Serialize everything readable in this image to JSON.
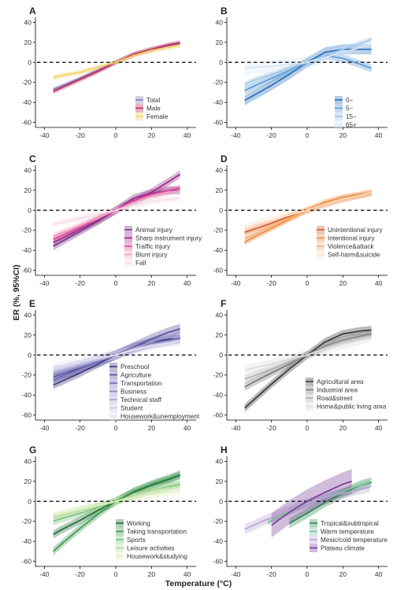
{
  "figure": {
    "ylabel": "ER (%, 95%CI)",
    "xlabel": "Temperature (°C)"
  },
  "chart_data": [
    {
      "panel": "A",
      "type": "line",
      "xlim": [
        -45,
        45
      ],
      "ylim": [
        -65,
        45
      ],
      "xticks": [
        -40,
        -20,
        0,
        20,
        40
      ],
      "yticks": [
        -60,
        -40,
        -20,
        0,
        20,
        40
      ],
      "legend_position": "bottom-right",
      "reference_line": 0,
      "series": [
        {
          "name": "Total",
          "color": "#8a78b8",
          "ci": 2,
          "x": [
            -35,
            -30,
            -20,
            -10,
            0,
            10,
            20,
            30,
            36
          ],
          "y": [
            -27,
            -23.5,
            -16,
            -8,
            0,
            8,
            13,
            17,
            19
          ]
        },
        {
          "name": "Male",
          "color": "#c0285a",
          "ci": 2.5,
          "x": [
            -35,
            -30,
            -20,
            -10,
            0,
            10,
            20,
            30,
            36
          ],
          "y": [
            -29,
            -25,
            -17,
            -9,
            0,
            8,
            13,
            17.5,
            19.5
          ]
        },
        {
          "name": "Female",
          "color": "#f2d26a",
          "ci": 2.5,
          "x": [
            -35,
            -30,
            -20,
            -10,
            0,
            10,
            20,
            30,
            36
          ],
          "y": [
            -15,
            -13,
            -10,
            -5,
            0,
            7,
            12,
            15,
            17
          ]
        }
      ]
    },
    {
      "panel": "B",
      "type": "line",
      "xlim": [
        -45,
        45
      ],
      "ylim": [
        -65,
        45
      ],
      "xticks": [
        -40,
        -20,
        0,
        20,
        40
      ],
      "yticks": [
        -60,
        -40,
        -20,
        0,
        20,
        40
      ],
      "legend_position": "bottom-right",
      "reference_line": 0,
      "series": [
        {
          "name": "0−",
          "color": "#2c6fb8",
          "ci": 5,
          "x": [
            -35,
            -30,
            -20,
            -10,
            0,
            10,
            20,
            30,
            36
          ],
          "y": [
            -38,
            -33,
            -23,
            -12,
            0,
            10,
            13,
            13,
            13
          ]
        },
        {
          "name": "5−",
          "color": "#5a9bd4",
          "ci": 4,
          "x": [
            -35,
            -30,
            -20,
            -10,
            0,
            10,
            20,
            30,
            36
          ],
          "y": [
            -28,
            -24,
            -16,
            -8,
            0,
            7,
            4,
            -2,
            -6
          ]
        },
        {
          "name": "15−",
          "color": "#9ec6e8",
          "ci": 3,
          "x": [
            -35,
            -30,
            -20,
            -10,
            0,
            10,
            20,
            30,
            36
          ],
          "y": [
            -22,
            -18,
            -12,
            -6,
            0,
            7,
            13,
            19,
            23
          ]
        },
        {
          "name": "65+",
          "color": "#d6e6f4",
          "ci": 6,
          "x": [
            -35,
            -30,
            -20,
            -10,
            0,
            10,
            20,
            30,
            36
          ],
          "y": [
            -6,
            -5,
            -4,
            -2,
            0,
            5,
            10,
            15,
            18
          ]
        }
      ]
    },
    {
      "panel": "C",
      "type": "line",
      "xlim": [
        -45,
        45
      ],
      "ylim": [
        -65,
        45
      ],
      "xticks": [
        -40,
        -20,
        0,
        20,
        40
      ],
      "yticks": [
        -60,
        -40,
        -20,
        0,
        20,
        40
      ],
      "legend_position": "bottom-right",
      "reference_line": 0,
      "series": [
        {
          "name": "Animal injury",
          "color": "#7c3a8e",
          "ci": 4,
          "x": [
            -35,
            -30,
            -20,
            -10,
            0,
            10,
            20,
            30,
            36
          ],
          "y": [
            -36,
            -31,
            -21,
            -11,
            0,
            12,
            17,
            20,
            20
          ]
        },
        {
          "name": "Sharp instrument injury",
          "color": "#9e2a86",
          "ci": 4,
          "x": [
            -35,
            -30,
            -20,
            -10,
            0,
            10,
            20,
            30,
            36
          ],
          "y": [
            -32,
            -28,
            -19,
            -10,
            0,
            9,
            18,
            29,
            36
          ]
        },
        {
          "name": "Traffic injury",
          "color": "#e0449a",
          "ci": 3,
          "x": [
            -35,
            -30,
            -20,
            -10,
            0,
            10,
            20,
            30,
            36
          ],
          "y": [
            -29,
            -25,
            -17,
            -8,
            0,
            10,
            16,
            20,
            22
          ]
        },
        {
          "name": "Blunt injury",
          "color": "#f2a0c4",
          "ci": 3,
          "x": [
            -35,
            -30,
            -20,
            -10,
            0,
            10,
            20,
            30,
            36
          ],
          "y": [
            -26,
            -22,
            -15,
            -8,
            0,
            8,
            14,
            18,
            20
          ]
        },
        {
          "name": "Fall",
          "color": "#f6dcea",
          "ci": 3,
          "x": [
            -35,
            -30,
            -20,
            -10,
            0,
            10,
            20,
            30,
            36
          ],
          "y": [
            -14,
            -12,
            -8,
            -4,
            0,
            5,
            9,
            11,
            12
          ]
        }
      ]
    },
    {
      "panel": "D",
      "type": "line",
      "xlim": [
        -45,
        45
      ],
      "ylim": [
        -65,
        45
      ],
      "xticks": [
        -40,
        -20,
        0,
        20,
        40
      ],
      "yticks": [
        -60,
        -40,
        -20,
        0,
        20,
        40
      ],
      "legend_position": "bottom-right",
      "reference_line": 0,
      "series": [
        {
          "name": "Unintentional injury",
          "color": "#d9582a",
          "ci": 3,
          "x": [
            -35,
            -30,
            -20,
            -10,
            0,
            10,
            20,
            30,
            36
          ],
          "y": [
            -22,
            -19,
            -13,
            -6,
            0,
            6,
            11,
            15,
            17
          ]
        },
        {
          "name": "Intentional injury",
          "color": "#ef8a3e",
          "ci": 3,
          "x": [
            -35,
            -30,
            -20,
            -10,
            0,
            10,
            20,
            30,
            36
          ],
          "y": [
            -32,
            -27,
            -18,
            -9,
            0,
            8,
            13,
            16,
            18
          ]
        },
        {
          "name": "Violence&attack",
          "color": "#f6b27a",
          "ci": 3,
          "x": [
            -35,
            -30,
            -20,
            -10,
            0,
            10,
            20,
            30,
            36
          ],
          "y": [
            -28,
            -24,
            -16,
            -8,
            0,
            7,
            12,
            15,
            17
          ]
        },
        {
          "name": "Self-harm&suicide",
          "color": "#fbe0c4",
          "ci": 4,
          "x": [
            -35,
            -30,
            -20,
            -10,
            0,
            10,
            20,
            30,
            36
          ],
          "y": [
            -18,
            -15,
            -10,
            -5,
            0,
            6,
            11,
            15,
            18
          ]
        }
      ]
    },
    {
      "panel": "E",
      "type": "line",
      "xlim": [
        -45,
        45
      ],
      "ylim": [
        -65,
        45
      ],
      "xticks": [
        -40,
        -20,
        0,
        20,
        40
      ],
      "yticks": [
        -60,
        -40,
        -20,
        0,
        20,
        40
      ],
      "legend_position": "bottom-center",
      "reference_line": 0,
      "series": [
        {
          "name": "Preschool",
          "color": "#3e3a78",
          "ci": 4,
          "x": [
            -35,
            -30,
            -20,
            -10,
            0,
            10,
            20,
            30,
            36
          ],
          "y": [
            -30,
            -26,
            -18,
            -9,
            0,
            8,
            13,
            16,
            16
          ]
        },
        {
          "name": "Agriculture",
          "color": "#5c4fa0",
          "ci": 5,
          "x": [
            -35,
            -30,
            -20,
            -10,
            0,
            10,
            20,
            30,
            36
          ],
          "y": [
            -22,
            -19,
            -13,
            -7,
            0,
            8,
            16,
            23,
            26
          ]
        },
        {
          "name": "Transportation",
          "color": "#6e68b4",
          "ci": 4,
          "x": [
            -35,
            -30,
            -20,
            -10,
            0,
            10,
            20,
            30,
            36
          ],
          "y": [
            -25,
            -21,
            -14,
            -7,
            0,
            7,
            12,
            15,
            17
          ]
        },
        {
          "name": "Business",
          "color": "#8a86c4",
          "ci": 4,
          "x": [
            -35,
            -30,
            -20,
            -10,
            0,
            10,
            20,
            30,
            36
          ],
          "y": [
            -20,
            -17,
            -12,
            -6,
            0,
            6,
            11,
            14,
            16
          ]
        },
        {
          "name": "Technical staff",
          "color": "#a6a2d2",
          "ci": 5,
          "x": [
            -35,
            -30,
            -20,
            -10,
            0,
            10,
            20,
            30,
            36
          ],
          "y": [
            -18,
            -15,
            -10,
            -5,
            0,
            7,
            13,
            19,
            23
          ]
        },
        {
          "name": "Student",
          "color": "#c4c2e2",
          "ci": 4,
          "x": [
            -35,
            -30,
            -20,
            -10,
            0,
            10,
            20,
            30,
            36
          ],
          "y": [
            -16,
            -14,
            -9,
            -5,
            0,
            6,
            10,
            13,
            15
          ]
        },
        {
          "name": "Housework&unemployment",
          "color": "#e2e0f0",
          "ci": 4,
          "x": [
            -35,
            -30,
            -20,
            -10,
            0,
            10,
            20,
            30,
            36
          ],
          "y": [
            -12,
            -10,
            -7,
            -3,
            0,
            5,
            9,
            12,
            14
          ]
        }
      ]
    },
    {
      "panel": "F",
      "type": "line",
      "xlim": [
        -45,
        45
      ],
      "ylim": [
        -65,
        45
      ],
      "xticks": [
        -40,
        -20,
        0,
        20,
        40
      ],
      "yticks": [
        -60,
        -40,
        -20,
        0,
        20,
        40
      ],
      "legend_position": "bottom-right",
      "reference_line": 0,
      "series": [
        {
          "name": "Agricultural area",
          "color": "#3a3a3a",
          "ci": 4,
          "x": [
            -35,
            -30,
            -20,
            -10,
            0,
            10,
            20,
            30,
            36
          ],
          "y": [
            -53,
            -45,
            -29,
            -14,
            0,
            13,
            21,
            24,
            25
          ]
        },
        {
          "name": "Industrial area",
          "color": "#7a7a7a",
          "ci": 4,
          "x": [
            -35,
            -30,
            -20,
            -10,
            0,
            10,
            20,
            30,
            36
          ],
          "y": [
            -32,
            -27,
            -18,
            -9,
            0,
            9,
            15,
            19,
            21
          ]
        },
        {
          "name": "Road&street",
          "color": "#b0b0b0",
          "ci": 4,
          "x": [
            -35,
            -30,
            -20,
            -10,
            0,
            10,
            20,
            30,
            36
          ],
          "y": [
            -24,
            -21,
            -14,
            -7,
            0,
            8,
            14,
            18,
            20
          ]
        },
        {
          "name": "Home&public living area",
          "color": "#dcdcdc",
          "ci": 5,
          "x": [
            -35,
            -30,
            -20,
            -10,
            0,
            10,
            20,
            30,
            36
          ],
          "y": [
            -15,
            -13,
            -9,
            -4,
            0,
            6,
            11,
            15,
            18
          ]
        }
      ]
    },
    {
      "panel": "G",
      "type": "line",
      "xlim": [
        -45,
        45
      ],
      "ylim": [
        -65,
        45
      ],
      "xticks": [
        -40,
        -20,
        0,
        20,
        40
      ],
      "yticks": [
        -60,
        -40,
        -20,
        0,
        20,
        40
      ],
      "legend_position": "bottom-right",
      "reference_line": 0,
      "series": [
        {
          "name": "Working",
          "color": "#1f6e38",
          "ci": 4,
          "x": [
            -35,
            -30,
            -20,
            -10,
            0,
            10,
            20,
            30,
            36
          ],
          "y": [
            -33,
            -28,
            -19,
            -9,
            0,
            9,
            16,
            22,
            26
          ]
        },
        {
          "name": "Taking transportation",
          "color": "#3e9a52",
          "ci": 4,
          "x": [
            -35,
            -30,
            -20,
            -10,
            0,
            10,
            20,
            30,
            36
          ],
          "y": [
            -50,
            -42,
            -27,
            -13,
            0,
            10,
            17,
            23,
            27
          ]
        },
        {
          "name": "Sports",
          "color": "#7cc27e",
          "ci": 4,
          "x": [
            -35,
            -30,
            -20,
            -10,
            0,
            10,
            20,
            30,
            36
          ],
          "y": [
            -20,
            -17,
            -12,
            -6,
            0,
            6,
            11,
            15,
            17
          ]
        },
        {
          "name": "Leisure activities",
          "color": "#b4dca0",
          "ci": 4,
          "x": [
            -35,
            -30,
            -20,
            -10,
            0,
            10,
            20,
            30,
            36
          ],
          "y": [
            -16,
            -14,
            -9,
            -5,
            0,
            6,
            11,
            14,
            16
          ]
        },
        {
          "name": "Housework&studying",
          "color": "#e2f0c0",
          "ci": 4,
          "x": [
            -35,
            -30,
            -20,
            -10,
            0,
            10,
            20,
            30,
            36
          ],
          "y": [
            -14,
            -12,
            -8,
            -4,
            0,
            4,
            7,
            9,
            10
          ]
        }
      ]
    },
    {
      "panel": "H",
      "type": "line",
      "xlim": [
        -45,
        45
      ],
      "ylim": [
        -65,
        45
      ],
      "xticks": [
        -40,
        -20,
        0,
        20,
        40
      ],
      "yticks": [
        -60,
        -40,
        -20,
        0,
        20,
        40
      ],
      "legend_position": "bottom-right",
      "reference_line": 0,
      "series": [
        {
          "name": "Tropical&subtropical",
          "color": "#2e8a4a",
          "ci": 5,
          "x": [
            -10,
            0,
            10,
            20,
            30,
            36
          ],
          "y": [
            -22,
            -12,
            -1,
            8,
            16,
            19
          ]
        },
        {
          "name": "Warm temperature",
          "color": "#7ac29a",
          "ci": 3,
          "x": [
            -22,
            -10,
            0,
            10,
            20,
            30,
            35
          ],
          "y": [
            -21,
            -10,
            -2,
            4,
            10,
            16,
            19
          ]
        },
        {
          "name": "Mesic/cold temperature",
          "color": "#b9a6d4",
          "ci": 5,
          "x": [
            -35,
            -25,
            -10,
            0,
            10,
            20,
            30,
            35
          ],
          "y": [
            -28,
            -20,
            -9,
            -2,
            4,
            8,
            12,
            14
          ]
        },
        {
          "name": "Plateau climate",
          "color": "#7a3f9a",
          "ci": 12,
          "x": [
            -20,
            -10,
            0,
            10,
            20,
            25
          ],
          "y": [
            -24,
            -11,
            0,
            9,
            17,
            20
          ]
        }
      ]
    }
  ]
}
